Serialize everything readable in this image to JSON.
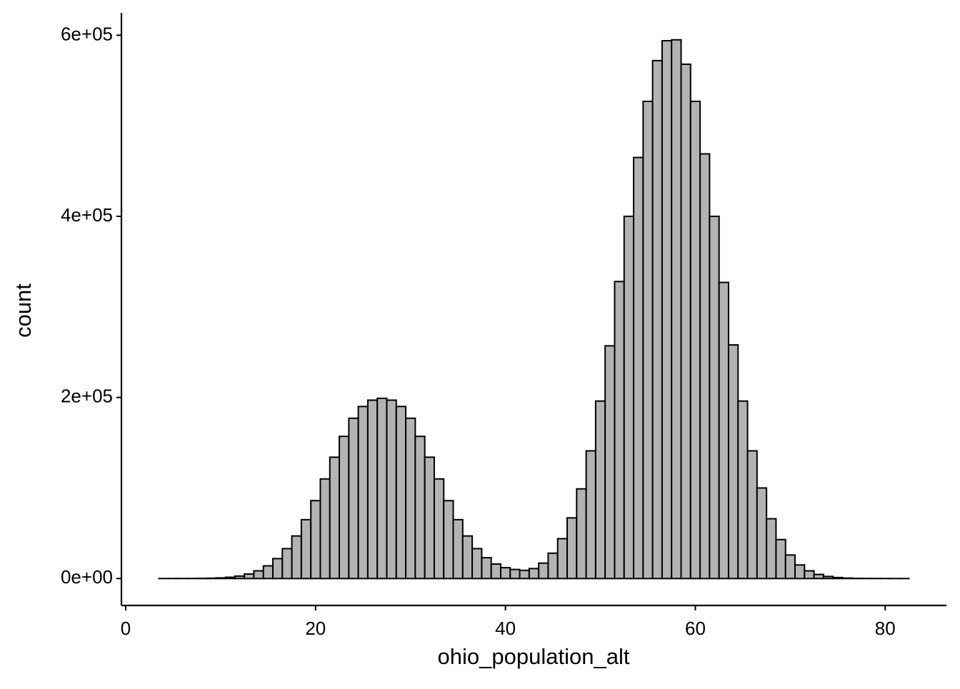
{
  "chart_data": {
    "type": "histogram",
    "x_label": "ohio_population_alt",
    "y_label": "count",
    "bins": [
      3.5,
      4.5,
      5.5,
      6.5,
      7.5,
      8.5,
      9.5,
      10.5,
      11.5,
      12.5,
      13.5,
      14.5,
      15.5,
      16.5,
      17.5,
      18.5,
      19.5,
      20.5,
      21.5,
      22.5,
      23.5,
      24.5,
      25.5,
      26.5,
      27.5,
      28.5,
      29.5,
      30.5,
      31.5,
      32.5,
      33.5,
      34.5,
      35.5,
      36.5,
      37.5,
      38.5,
      39.5,
      40.5,
      41.5,
      42.5,
      43.5,
      44.5,
      45.5,
      46.5,
      47.5,
      48.5,
      49.5,
      50.5,
      51.5,
      52.5,
      53.5,
      54.5,
      55.5,
      56.5,
      57.5,
      58.5,
      59.5,
      60.5,
      61.5,
      62.5,
      63.5,
      64.5,
      65.5,
      66.5,
      67.5,
      68.5,
      69.5,
      70.5,
      71.5,
      72.5,
      73.5,
      74.5,
      75.5,
      76.5,
      77.5,
      78.5,
      79.5,
      80.5,
      81.5,
      82.5
    ],
    "counts": [
      4,
      10,
      25,
      60,
      150,
      330,
      700,
      1400,
      2700,
      5000,
      8500,
      14000,
      22000,
      33000,
      47000,
      65000,
      86000,
      110000,
      134000,
      157000,
      177000,
      190000,
      197000,
      199000,
      197000,
      190000,
      177000,
      157000,
      134000,
      110000,
      86000,
      65000,
      47000,
      33000,
      23000,
      16000,
      12000,
      10000,
      9000,
      11000,
      17000,
      28000,
      44000,
      67000,
      99000,
      141000,
      196000,
      257000,
      328000,
      400000,
      465000,
      527000,
      572000,
      594000,
      595000,
      568000,
      527000,
      469000,
      400000,
      327000,
      258000,
      196000,
      141000,
      100000,
      66000,
      43000,
      26000,
      15000,
      8500,
      4500,
      2300,
      1100,
      500,
      200,
      90,
      40,
      15,
      6,
      2
    ],
    "color": "#b3b3b3",
    "edge_color": "#000000",
    "xlim": [
      -0.45,
      86.45
    ],
    "ylim": [
      -29750,
      624750
    ],
    "xticks": [
      0,
      20,
      40,
      60,
      80
    ],
    "yticks": [
      {
        "value": 0,
        "label": "0e+00"
      },
      {
        "value": 200000,
        "label": "2e+05"
      },
      {
        "value": 400000,
        "label": "4e+05"
      },
      {
        "value": 600000,
        "label": "6e+05"
      }
    ],
    "grid": false
  }
}
